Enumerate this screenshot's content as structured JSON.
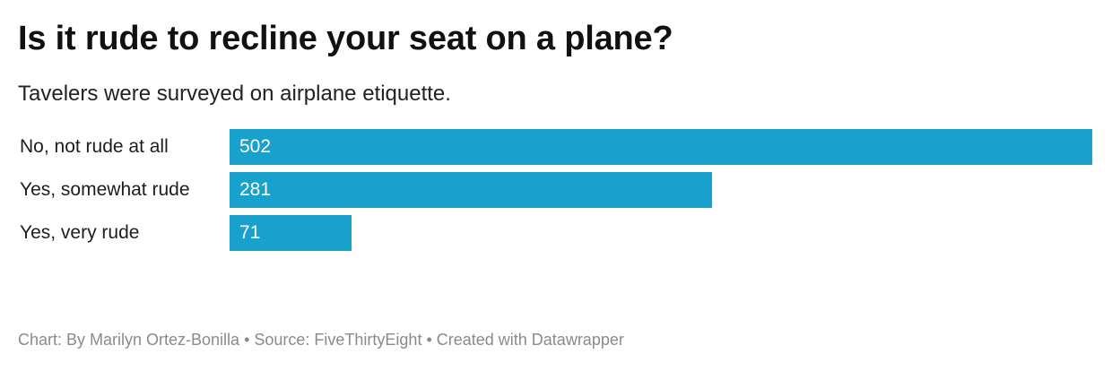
{
  "header": {
    "title": "Is it rude to recline your seat on a plane?",
    "subtitle": "Tavelers were surveyed on airplane etiquette."
  },
  "chart_data": {
    "type": "bar",
    "orientation": "horizontal",
    "title": "Is it rude to recline your seat on a plane?",
    "subtitle": "Tavelers were surveyed on airplane etiquette.",
    "categories": [
      "No, not rude at all",
      "Yes, somewhat rude",
      "Yes, very rude"
    ],
    "values": [
      502,
      281,
      71
    ],
    "value_labels": [
      "502",
      "281",
      "71"
    ],
    "xlim": [
      0,
      502
    ],
    "grid": false,
    "legend": "none",
    "bar_color": "#18a1cd"
  },
  "footer": {
    "credit": "Chart: By Marilyn Ortez-Bonilla • Source: FiveThirtyEight • Created with Datawrapper"
  }
}
